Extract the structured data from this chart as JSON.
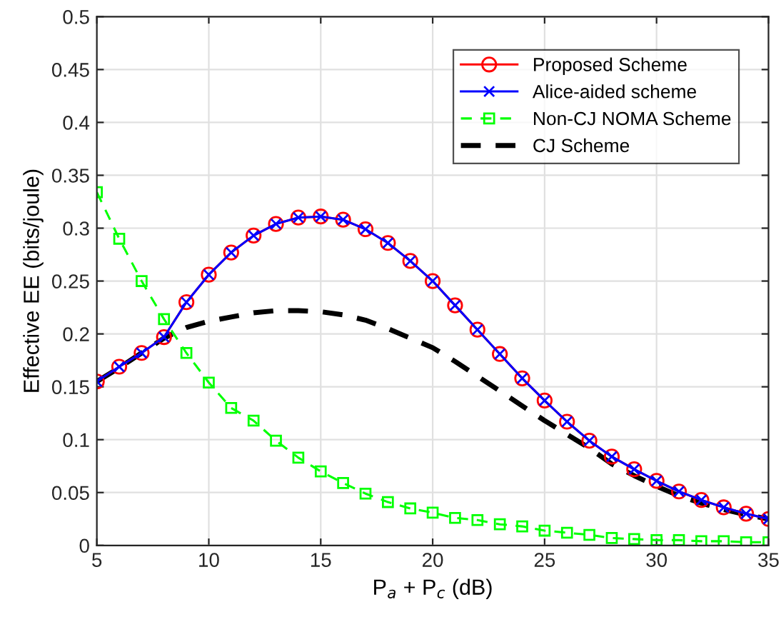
{
  "chart_data": {
    "type": "line",
    "xlabel": "P$_{a}$ + P$_{c}$ (dB)",
    "ylabel": "Effective EE (bits/joule)",
    "x": [
      5,
      6,
      7,
      8,
      9,
      10,
      11,
      12,
      13,
      14,
      15,
      16,
      17,
      18,
      19,
      20,
      21,
      22,
      23,
      24,
      25,
      26,
      27,
      28,
      29,
      30,
      31,
      32,
      33,
      34,
      35
    ],
    "xlim": [
      5,
      35
    ],
    "xticks": [
      5,
      10,
      15,
      20,
      25,
      30,
      35
    ],
    "ylim": [
      0,
      0.5
    ],
    "yticks": [
      0,
      0.05,
      0.1,
      0.15,
      0.2,
      0.25,
      0.3,
      0.35,
      0.4,
      0.45,
      0.5
    ],
    "grid": true,
    "legend": "top right",
    "series": [
      {
        "name": "Proposed Scheme",
        "color": "#ff0000",
        "marker": "circle",
        "line_style": "solid",
        "values": [
          0.155,
          0.169,
          0.182,
          0.197,
          0.23,
          0.256,
          0.277,
          0.293,
          0.304,
          0.31,
          0.311,
          0.308,
          0.299,
          0.286,
          0.269,
          0.25,
          0.227,
          0.204,
          0.181,
          0.158,
          0.137,
          0.117,
          0.099,
          0.084,
          0.072,
          0.061,
          0.051,
          0.043,
          0.036,
          0.03,
          0.025
        ]
      },
      {
        "name": "Alice-aided scheme",
        "color": "#0000ff",
        "marker": "cross",
        "line_style": "solid",
        "values": [
          0.155,
          0.169,
          0.182,
          0.197,
          0.23,
          0.256,
          0.277,
          0.293,
          0.304,
          0.31,
          0.311,
          0.308,
          0.299,
          0.286,
          0.269,
          0.25,
          0.227,
          0.204,
          0.181,
          0.158,
          0.137,
          0.117,
          0.099,
          0.084,
          0.072,
          0.061,
          0.051,
          0.043,
          0.036,
          0.03,
          0.025
        ]
      },
      {
        "name": "Non-CJ NOMA Scheme",
        "color": "#00ff00",
        "marker": "square",
        "line_style": "dashed",
        "values": [
          0.334,
          0.29,
          0.25,
          0.214,
          0.182,
          0.154,
          0.13,
          0.118,
          0.099,
          0.083,
          0.07,
          0.059,
          0.049,
          0.041,
          0.035,
          0.031,
          0.026,
          0.024,
          0.02,
          0.018,
          0.014,
          0.012,
          0.01,
          0.007,
          0.006,
          0.005,
          0.005,
          0.004,
          0.004,
          0.003,
          0.003
        ]
      },
      {
        "name": "CJ Scheme",
        "color": "#000000",
        "marker": "none",
        "line_style": "dashed",
        "values": [
          0.155,
          0.168,
          0.182,
          0.196,
          0.206,
          0.212,
          0.216,
          0.22,
          0.222,
          0.222,
          0.221,
          0.218,
          0.213,
          0.205,
          0.196,
          0.187,
          0.174,
          0.16,
          0.146,
          0.132,
          0.118,
          0.105,
          0.092,
          0.077,
          0.066,
          0.056,
          0.047,
          0.04,
          0.034,
          0.029,
          0.025
        ]
      }
    ]
  }
}
